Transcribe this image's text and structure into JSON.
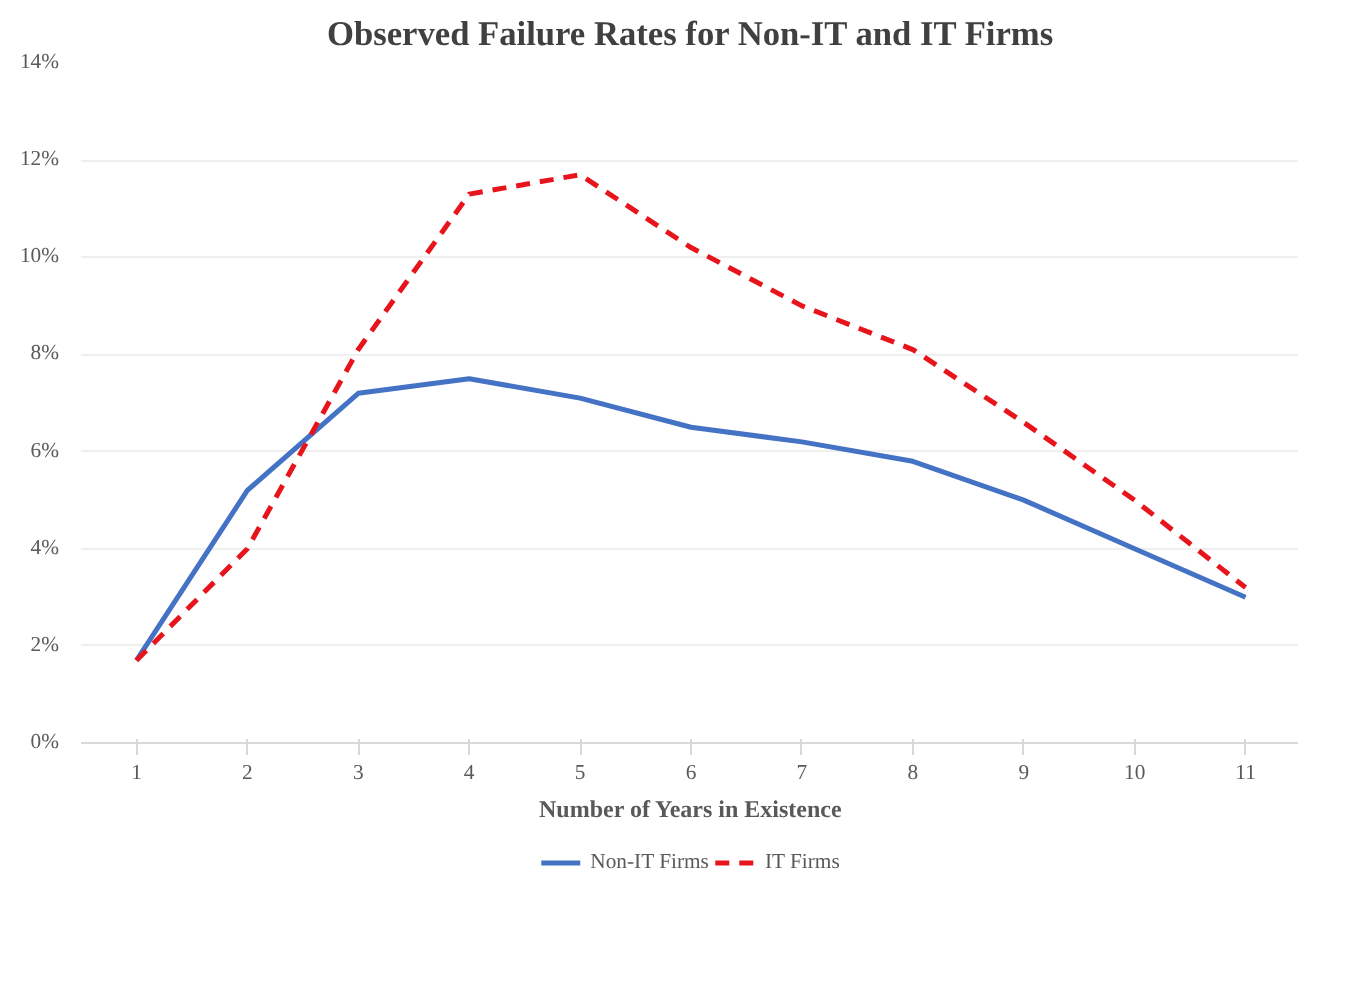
{
  "chart_data": {
    "type": "line",
    "title": "Observed Failure Rates for Non-IT and IT Firms",
    "xlabel": "Number of Years in Existence",
    "categories": [
      "1",
      "2",
      "3",
      "4",
      "5",
      "6",
      "7",
      "8",
      "9",
      "10",
      "11"
    ],
    "series": [
      {
        "name": "Non-IT Firms",
        "color": "#4472c4",
        "line_style": "solid",
        "values": [
          1.7,
          5.2,
          7.2,
          7.5,
          7.1,
          6.5,
          6.2,
          5.8,
          5.0,
          4.0,
          3.0
        ]
      },
      {
        "name": "IT Firms",
        "color": "#e8141c",
        "line_style": "dashed",
        "values": [
          1.7,
          4.0,
          8.1,
          11.3,
          11.7,
          10.2,
          9.0,
          8.1,
          6.6,
          5.0,
          3.2
        ]
      }
    ],
    "ylim": [
      0,
      14
    ],
    "yticks": [
      {
        "value": 0,
        "label": "0%"
      },
      {
        "value": 2,
        "label": "2%"
      },
      {
        "value": 4,
        "label": "4%"
      },
      {
        "value": 6,
        "label": "6%"
      },
      {
        "value": 8,
        "label": "8%"
      },
      {
        "value": 10,
        "label": "10%"
      },
      {
        "value": 12,
        "label": "12%"
      },
      {
        "value": 14,
        "label": "14%"
      }
    ],
    "grid": "y",
    "legend": "bottom"
  }
}
